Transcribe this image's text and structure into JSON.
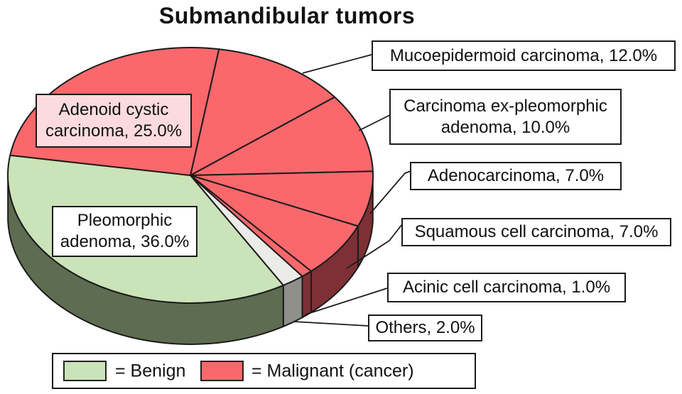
{
  "title": "Submandibular tumors",
  "colors": {
    "background": "#ffffff",
    "outline": "#1b1b1b",
    "benign_fill": "#cbe3b8",
    "malignant_fill": "#fa686c",
    "others_fill": "#ebebe9",
    "benign_side": "#5e6c51",
    "malignant_side": "#7e3036",
    "others_side": "#90908b",
    "adenoid_label_bg": "#fcdadd",
    "label_box_bg": "#ffffff"
  },
  "chart_data": {
    "type": "pie",
    "title": "Submandibular tumors",
    "style": "3d-pie",
    "values_unit": "percent",
    "order": "clockwise-from-top",
    "start_rotation_deg": 9,
    "slices": [
      {
        "label": "Mucoepidermoid carcinoma",
        "value": 12.0,
        "group": "malignant",
        "color": "#fa686c",
        "side_color": "#7e3036",
        "callout": [
          "Mucoepidermoid carcinoma, 12.0%"
        ]
      },
      {
        "label": "Carcinoma ex-pleomorphic adenoma",
        "value": 10.0,
        "group": "malignant",
        "color": "#fa686c",
        "side_color": "#7e3036",
        "callout": [
          "Carcinoma ex-pleomorphic",
          "adenoma, 10.0%"
        ]
      },
      {
        "label": "Adenocarcinoma",
        "value": 7.0,
        "group": "malignant",
        "color": "#fa686c",
        "side_color": "#7e3036",
        "callout": [
          "Adenocarcinoma, 7.0%"
        ]
      },
      {
        "label": "Squamous cell carcinoma",
        "value": 7.0,
        "group": "malignant",
        "color": "#fa686c",
        "side_color": "#7e3036",
        "callout": [
          "Squamous cell carcinoma, 7.0%"
        ]
      },
      {
        "label": "Acinic cell carcinoma",
        "value": 1.0,
        "group": "malignant",
        "color": "#fa686c",
        "side_color": "#7e3036",
        "callout": [
          "Acinic cell carcinoma, 1.0%"
        ]
      },
      {
        "label": "Others",
        "value": 2.0,
        "group": "other",
        "color": "#ebebe9",
        "side_color": "#90908b",
        "callout": [
          "Others, 2.0%"
        ]
      },
      {
        "label": "Pleomorphic adenoma",
        "value": 36.0,
        "group": "benign",
        "color": "#cbe3b8",
        "side_color": "#5e6c51",
        "callout": [
          "Pleomorphic",
          "adenoma, 36.0%"
        ]
      },
      {
        "label": "Adenoid cystic carcinoma",
        "value": 25.0,
        "group": "malignant",
        "color": "#fa686c",
        "side_color": "#7e3036",
        "callout": [
          "Adenoid cystic",
          "carcinoma, 25.0%"
        ]
      }
    ],
    "legend": [
      {
        "label": "= Benign",
        "color": "#cbe3b8"
      },
      {
        "label": "= Malignant (cancer)",
        "color": "#fa686c"
      }
    ],
    "legend_position": "bottom"
  }
}
